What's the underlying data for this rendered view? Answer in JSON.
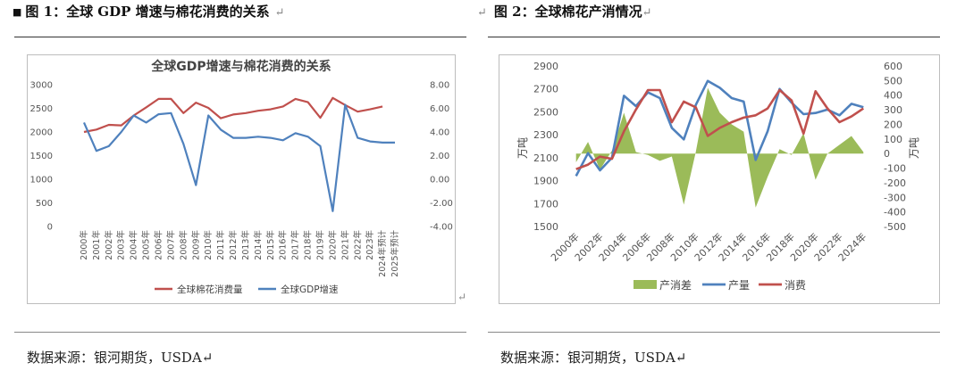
{
  "fig1": {
    "caption_prefix": "■",
    "caption": "图 1：全球 GDP 增速与棉花消费的关系",
    "para_mark": "↵",
    "source": "数据来源：银河期货，USDA↵",
    "side_mark": "↵"
  },
  "fig2": {
    "caption": "图 2：全球棉花产消情况",
    "para_mark": "↵",
    "source": "数据来源：银河期货，USDA↵"
  },
  "chart_data": [
    {
      "type": "line",
      "title": "全球GDP增速与棉花消费的关系",
      "categories": [
        "2000年",
        "2001年",
        "2002年",
        "2003年",
        "2004年",
        "2005年",
        "2006年",
        "2007年",
        "2008年",
        "2009年",
        "2010年",
        "2011年",
        "2012年",
        "2013年",
        "2014年",
        "2015年",
        "2016年",
        "2017年",
        "2018年",
        "2019年",
        "2020年",
        "2021年",
        "2022年",
        "2023年",
        "2024年预计",
        "2025年预计"
      ],
      "left_axis": {
        "min": 0,
        "max": 3000,
        "ticks": [
          "0",
          "500",
          "1000",
          "1500",
          "2000",
          "2500",
          "3000"
        ]
      },
      "right_axis": {
        "min": -4,
        "max": 8,
        "ticks": [
          "-4.00",
          "-2.00",
          "0.00",
          "2.00",
          "4.00",
          "6.00",
          "8.00"
        ]
      },
      "series": [
        {
          "name": "全球棉花消费量",
          "axis": "left",
          "color": "#c0504d",
          "values": [
            2000,
            2050,
            2150,
            2140,
            2350,
            2520,
            2700,
            2700,
            2400,
            2620,
            2510,
            2290,
            2370,
            2400,
            2450,
            2480,
            2540,
            2700,
            2630,
            2300,
            2720,
            2570,
            2430,
            2480,
            2540,
            null
          ]
        },
        {
          "name": "全球GDP增速",
          "axis": "right",
          "color": "#4f81bd",
          "values": [
            4.8,
            2.4,
            2.8,
            4.0,
            5.4,
            4.8,
            5.5,
            5.6,
            3.0,
            -0.5,
            5.4,
            4.2,
            3.5,
            3.5,
            3.6,
            3.5,
            3.3,
            3.9,
            3.6,
            2.8,
            -2.7,
            6.3,
            3.5,
            3.2,
            3.1,
            3.1
          ]
        }
      ],
      "legend": "bottom"
    },
    {
      "type": "line",
      "categories": [
        "2000年",
        "2001年",
        "2002年",
        "2003年",
        "2004年",
        "2005年",
        "2006年",
        "2007年",
        "2008年",
        "2009年",
        "2010年",
        "2011年",
        "2012年",
        "2013年",
        "2014年",
        "2015年",
        "2016年",
        "2017年",
        "2018年",
        "2019年",
        "2020年",
        "2021年",
        "2022年",
        "2023年",
        "2024年"
      ],
      "x_tick_labels": [
        "2000年",
        "2002年",
        "2004年",
        "2006年",
        "2008年",
        "2010年",
        "2012年",
        "2014年",
        "2016年",
        "2018年",
        "2020年",
        "2022年",
        "2024年"
      ],
      "left_axis": {
        "label": "万吨",
        "min": 1500,
        "max": 2900,
        "ticks": [
          "1500",
          "1700",
          "1900",
          "2100",
          "2300",
          "2500",
          "2700",
          "2900"
        ]
      },
      "right_axis": {
        "label": "万吨",
        "min": -500,
        "max": 600,
        "ticks": [
          "-500",
          "-400",
          "-300",
          "-200",
          "-100",
          "0",
          "100",
          "200",
          "300",
          "400",
          "500",
          "600"
        ]
      },
      "series": [
        {
          "name": "产消差",
          "axis": "right",
          "type": "area",
          "color": "#9bbb59",
          "values": [
            -60,
            80,
            -110,
            20,
            280,
            10,
            -10,
            -50,
            -20,
            -350,
            10,
            450,
            280,
            200,
            150,
            -370,
            -160,
            30,
            -10,
            140,
            -180,
            0,
            60,
            120,
            10
          ]
        },
        {
          "name": "产量",
          "axis": "left",
          "color": "#4f81bd",
          "values": [
            1940,
            2140,
            1990,
            2100,
            2640,
            2550,
            2670,
            2620,
            2360,
            2260,
            2560,
            2770,
            2710,
            2620,
            2590,
            2080,
            2330,
            2700,
            2580,
            2480,
            2490,
            2520,
            2470,
            2570,
            2540
          ]
        },
        {
          "name": "消费",
          "axis": "left",
          "color": "#c0504d",
          "values": [
            2000,
            2040,
            2110,
            2090,
            2330,
            2520,
            2690,
            2690,
            2410,
            2590,
            2540,
            2290,
            2360,
            2410,
            2450,
            2470,
            2530,
            2690,
            2600,
            2310,
            2680,
            2530,
            2410,
            2460,
            2530
          ]
        }
      ],
      "legend": "bottom"
    }
  ]
}
